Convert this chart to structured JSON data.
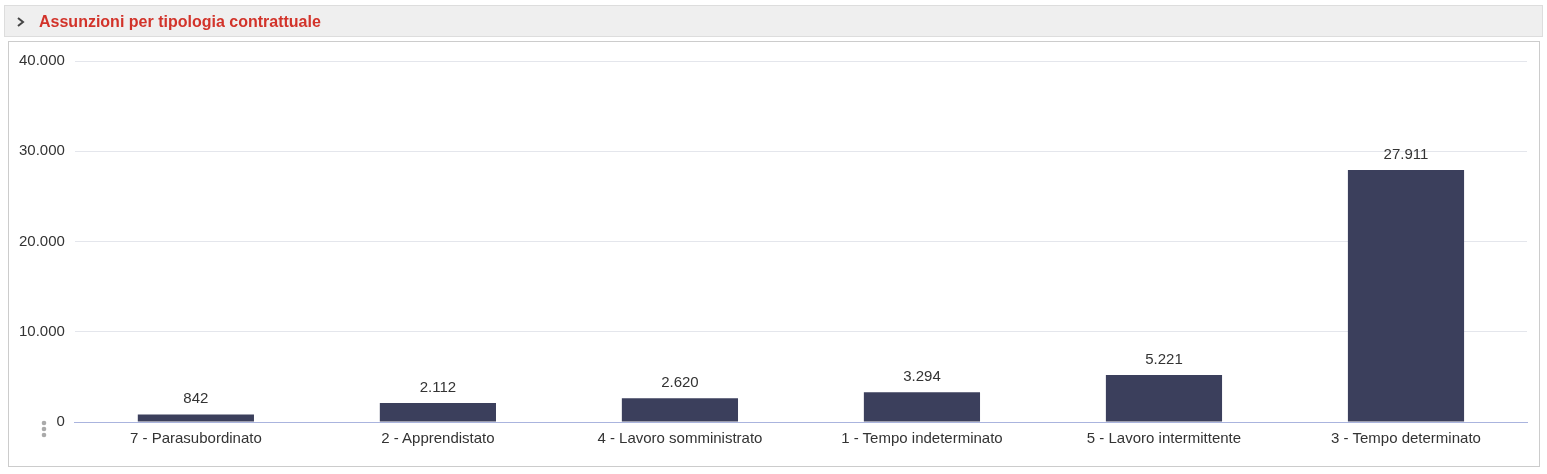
{
  "chart_data": {
    "type": "bar",
    "title": "Assunzioni per tipologia contrattuale",
    "categories": [
      "7 - Parasubordinato",
      "2 - Apprendistato",
      "4 - Lavoro somministrato",
      "1 - Tempo indeterminato",
      "5 - Lavoro intermittente",
      "3 - Tempo determinato"
    ],
    "values": [
      842,
      2112,
      2620,
      3294,
      5221,
      27911
    ],
    "value_labels": [
      "842",
      "2.112",
      "2.620",
      "3.294",
      "5.221",
      "27.911"
    ],
    "color": "#3b3f5c",
    "ylim": [
      0,
      40000
    ],
    "yticks": [
      {
        "value": 0,
        "label": "0"
      },
      {
        "value": 10000,
        "label": "10.000"
      },
      {
        "value": 20000,
        "label": "20.000"
      },
      {
        "value": 30000,
        "label": "30.000"
      },
      {
        "value": 40000,
        "label": "40.000"
      }
    ],
    "grid": "y",
    "legend": false
  }
}
